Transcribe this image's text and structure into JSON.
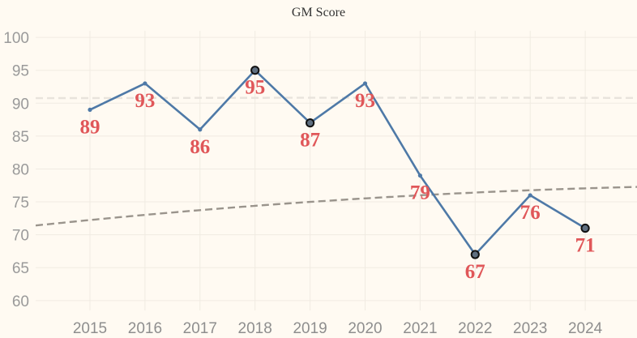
{
  "chart_data": {
    "type": "line",
    "title": "GM Score",
    "xlabel": "",
    "ylabel": "",
    "x": [
      2015,
      2016,
      2017,
      2018,
      2019,
      2020,
      2021,
      2022,
      2023,
      2024
    ],
    "categories": [
      "2015",
      "2016",
      "2017",
      "2018",
      "2019",
      "2020",
      "2021",
      "2022",
      "2023",
      "2024"
    ],
    "yticks": [
      "60",
      "65",
      "70",
      "75",
      "80",
      "85",
      "90",
      "95",
      "100"
    ],
    "ylim": [
      58.5,
      101
    ],
    "grid": true,
    "legend": "none",
    "series": [
      {
        "values": [
          89,
          93,
          86,
          95,
          87,
          93,
          79,
          67,
          76,
          71
        ],
        "data_labels": [
          "89",
          "93",
          "86",
          "95",
          "87",
          "93",
          "79",
          "67",
          "76",
          "71"
        ],
        "highlighted": [
          false,
          false,
          false,
          true,
          true,
          false,
          false,
          true,
          false,
          true
        ],
        "color": "#4e79a7"
      }
    ],
    "trendlines": [
      {
        "kind": "quadratic",
        "style": "dashed",
        "color": "#9a948c",
        "coeffs": [
          -0.0307,
          0.8117,
          72.24
        ]
      },
      {
        "kind": "quadratic",
        "style": "dashed",
        "color": "#e8e3dc",
        "coeffs": [
          -0.0015,
          0.0168,
          90.78
        ]
      }
    ],
    "label_color": "#e05759"
  }
}
